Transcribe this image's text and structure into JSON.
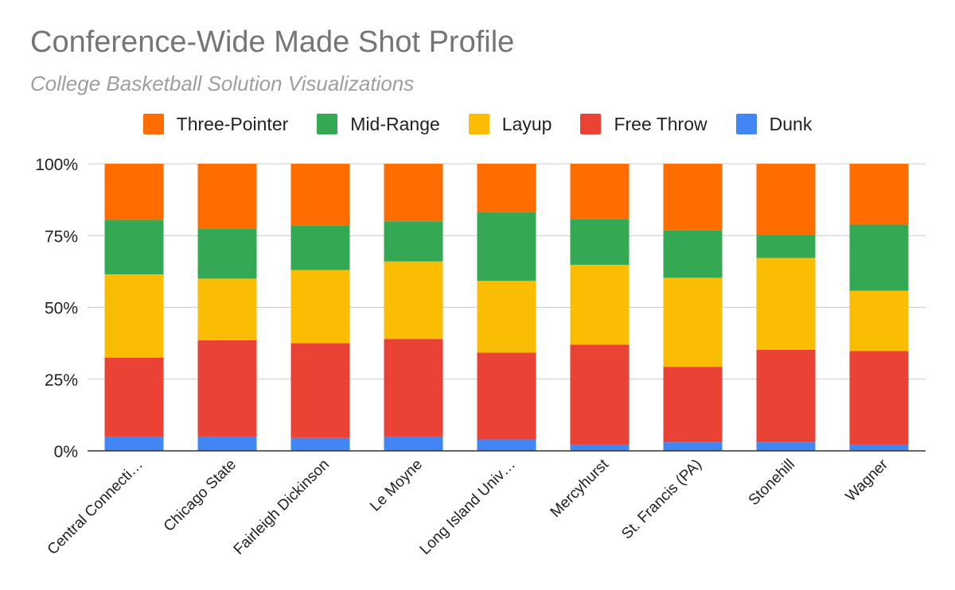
{
  "chart_data": {
    "type": "bar",
    "stacked": "percent",
    "title": "Conference-Wide Made Shot Profile",
    "subtitle": "College Basketball Solution Visualizations",
    "xlabel": "",
    "ylabel": "",
    "ylim": [
      0,
      100
    ],
    "yticks": [
      "0%",
      "25%",
      "50%",
      "75%",
      "100%"
    ],
    "yticks_values": [
      0,
      25,
      50,
      75,
      100
    ],
    "grid": true,
    "legend_position": "top",
    "categories": [
      "Central Connecti…",
      "Chicago State",
      "Fairleigh Dickinson",
      "Le Moyne",
      "Long Island Univ…",
      "Mercyhurst",
      "St. Francis (PA)",
      "Stonehill",
      "Wagner"
    ],
    "series": [
      {
        "name": "Dunk",
        "color": "#4285f4",
        "values": [
          5,
          5,
          4.5,
          5,
          4,
          2,
          3,
          3,
          2
        ]
      },
      {
        "name": "Free Throw",
        "color": "#ea4335",
        "values": [
          27.5,
          33.5,
          33,
          34,
          30.2,
          35,
          26.3,
          32.2,
          32.8
        ]
      },
      {
        "name": "Layup",
        "color": "#fbbc04",
        "values": [
          29,
          21.5,
          25.5,
          27,
          25,
          27.8,
          31,
          32,
          21
        ]
      },
      {
        "name": "Mid-Range",
        "color": "#34a853",
        "values": [
          19,
          17.3,
          15.5,
          14,
          24,
          16,
          16.5,
          8,
          23
        ]
      },
      {
        "name": "Three-Pointer",
        "color": "#ff6d01",
        "values": [
          19.5,
          22.7,
          21.5,
          20,
          16.8,
          19.2,
          23.2,
          24.8,
          21.2
        ]
      }
    ],
    "legend_order": [
      "Three-Pointer",
      "Mid-Range",
      "Layup",
      "Free Throw",
      "Dunk"
    ]
  }
}
